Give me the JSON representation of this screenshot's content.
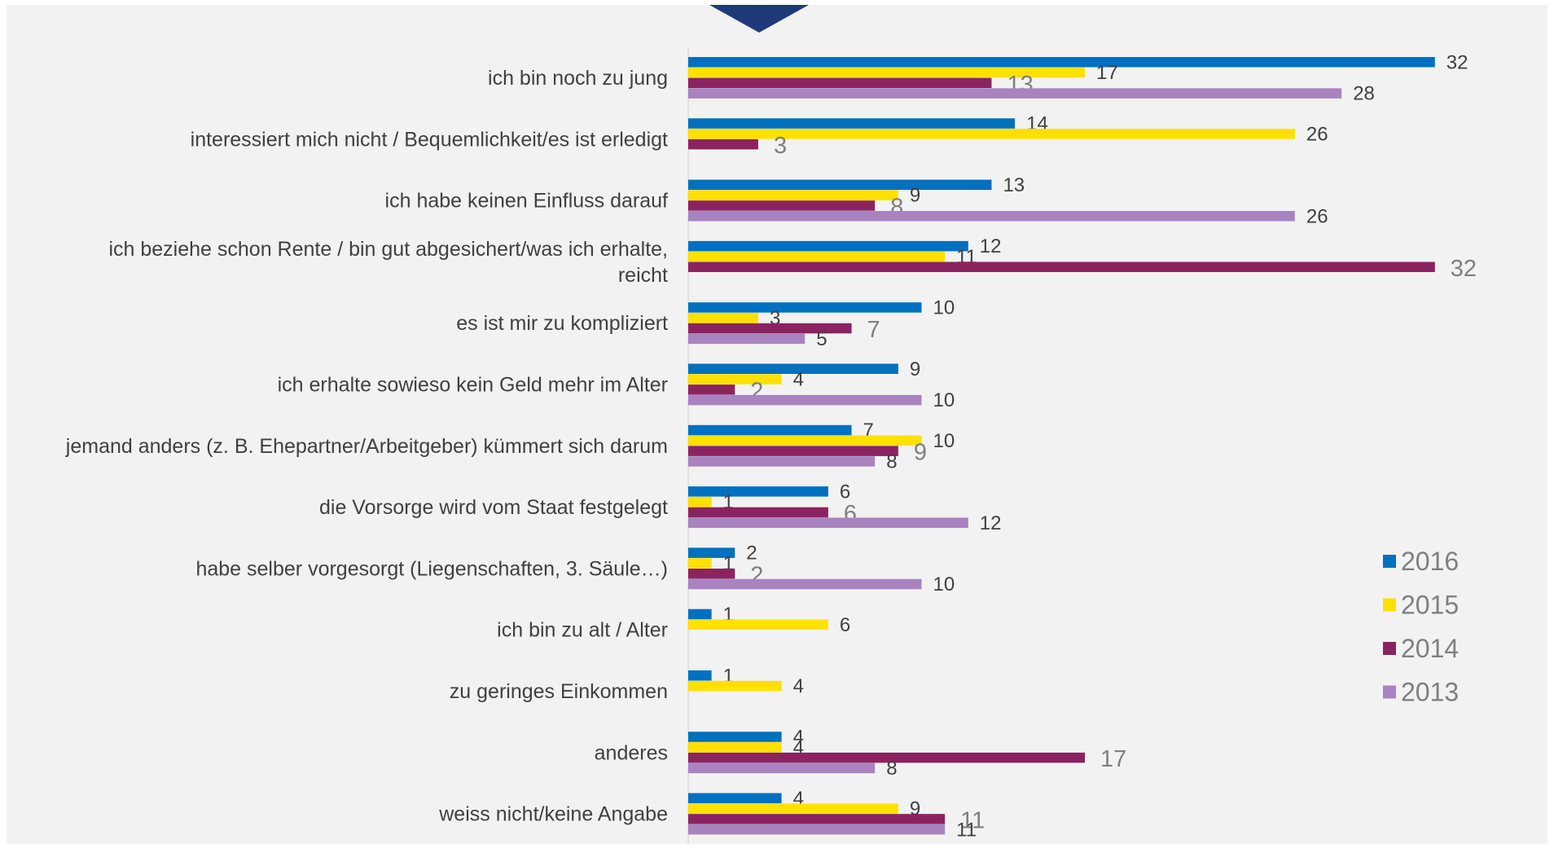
{
  "chart_data": {
    "type": "bar",
    "orientation": "horizontal",
    "title": "",
    "xlabel": "",
    "ylabel": "",
    "xlim": [
      0,
      32
    ],
    "grid": false,
    "legend_position": "right",
    "categories": [
      [
        "ich bin noch zu jung"
      ],
      [
        "interessiert mich nicht / Bequemlichkeit/es ist erledigt"
      ],
      [
        "ich habe keinen Einfluss darauf"
      ],
      [
        "ich beziehe schon Rente / bin gut abgesichert/was ich erhalte,",
        "reicht"
      ],
      [
        "es ist mir zu kompliziert"
      ],
      [
        "ich erhalte sowieso kein Geld mehr im Alter"
      ],
      [
        "jemand anders (z. B. Ehepartner/Arbeitgeber) kümmert sich darum"
      ],
      [
        "die Vorsorge wird vom Staat festgelegt"
      ],
      [
        "habe selber vorgesorgt (Liegenschaften, 3. Säule…)"
      ],
      [
        "ich bin zu alt / Alter"
      ],
      [
        "zu geringes Einkommen"
      ],
      [
        "anderes"
      ],
      [
        "weiss nicht/keine Angabe"
      ]
    ],
    "series": [
      {
        "name": "2016",
        "color": "#0070c0",
        "values": [
          32,
          14,
          13,
          12,
          10,
          9,
          7,
          6,
          2,
          1,
          1,
          4,
          4
        ]
      },
      {
        "name": "2015",
        "color": "#ffe000",
        "values": [
          17,
          26,
          9,
          11,
          3,
          4,
          10,
          1,
          1,
          6,
          4,
          4,
          9
        ]
      },
      {
        "name": "2014",
        "color": "#8b2361",
        "values": [
          13,
          3,
          8,
          32,
          7,
          2,
          9,
          6,
          2,
          null,
          null,
          17,
          11
        ]
      },
      {
        "name": "2013",
        "color": "#a983c0",
        "values": [
          28,
          null,
          26,
          null,
          5,
          10,
          8,
          12,
          10,
          null,
          null,
          8,
          11
        ]
      }
    ]
  },
  "decor": {
    "marker_color": "#1f3a7a",
    "axis_color": "#d9d9d9"
  }
}
